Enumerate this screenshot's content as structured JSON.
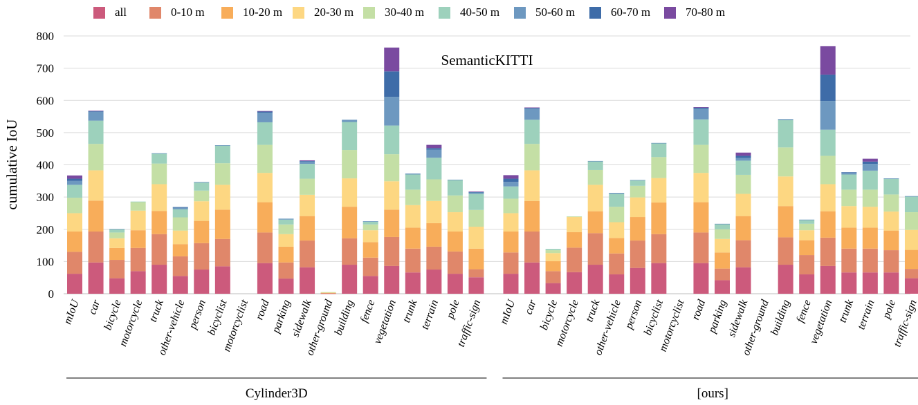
{
  "chart_data": {
    "type": "bar",
    "stacked": true,
    "title": "SemanticKITTI",
    "ylabel": "cumulative IoU",
    "ylim": [
      0,
      800
    ],
    "yticks": [
      0,
      100,
      200,
      300,
      400,
      500,
      600,
      700,
      800
    ],
    "grid": true,
    "legend_position": "top",
    "categories": [
      "mIoU",
      "car",
      "bicycle",
      "motorcycle",
      "truck",
      "other-vehicle",
      "person",
      "bicyclist",
      "motorcyclist",
      "road",
      "parking",
      "sidewalk",
      "other-ground",
      "building",
      "fence",
      "vegetation",
      "trunk",
      "terrain",
      "pole",
      "traffic-sign"
    ],
    "series_names": [
      "all",
      "0-10 m",
      "10-20 m",
      "20-30 m",
      "30-40 m",
      "40-50 m",
      "50-60 m",
      "60-70 m",
      "70-80 m"
    ],
    "series_colors": [
      "#cc5a7c",
      "#e0876a",
      "#f8ad5a",
      "#fdd782",
      "#c4dfa5",
      "#9dd1bc",
      "#6d98c0",
      "#3e6ca8",
      "#7a4aa0"
    ],
    "groups": [
      {
        "name": "Cylinder3D",
        "stacks": [
          [
            62,
            130,
            193,
            250,
            298,
            338,
            350,
            357,
            367
          ],
          [
            97,
            193,
            289,
            383,
            465,
            537,
            565,
            567,
            568
          ],
          [
            48,
            105,
            142,
            172,
            190,
            200,
            201,
            201,
            201
          ],
          [
            70,
            142,
            197,
            258,
            285,
            286,
            286,
            286,
            286
          ],
          [
            90,
            185,
            257,
            340,
            404,
            435,
            436,
            436,
            436
          ],
          [
            55,
            116,
            154,
            196,
            237,
            262,
            268,
            269,
            269
          ],
          [
            75,
            157,
            226,
            287,
            320,
            345,
            347,
            347,
            347
          ],
          [
            85,
            170,
            261,
            338,
            405,
            460,
            461,
            461,
            461
          ],
          [
            0,
            0,
            0,
            0,
            0,
            0,
            0,
            0,
            0
          ],
          [
            95,
            190,
            284,
            375,
            462,
            532,
            562,
            566,
            567
          ],
          [
            47,
            97,
            146,
            185,
            215,
            230,
            233,
            233,
            233
          ],
          [
            82,
            165,
            241,
            307,
            357,
            403,
            410,
            412,
            414
          ],
          [
            1,
            2,
            3,
            4,
            5,
            5,
            5,
            5,
            5
          ],
          [
            90,
            172,
            270,
            358,
            446,
            533,
            540,
            540,
            540
          ],
          [
            55,
            112,
            160,
            197,
            215,
            224,
            225,
            225,
            225
          ],
          [
            86,
            176,
            261,
            349,
            433,
            522,
            611,
            690,
            764
          ],
          [
            66,
            140,
            205,
            275,
            323,
            370,
            373,
            373,
            373
          ],
          [
            75,
            146,
            219,
            288,
            355,
            422,
            447,
            452,
            462
          ],
          [
            62,
            131,
            193,
            253,
            305,
            353,
            354,
            354,
            354
          ],
          [
            51,
            76,
            140,
            208,
            260,
            310,
            315,
            316,
            317
          ]
        ]
      },
      {
        "name": "[ours]",
        "stacks": [
          [
            62,
            128,
            193,
            250,
            295,
            333,
            347,
            357,
            368
          ],
          [
            97,
            193,
            288,
            383,
            465,
            540,
            576,
            577,
            578
          ],
          [
            33,
            70,
            101,
            126,
            135,
            139,
            139,
            139,
            139
          ],
          [
            67,
            143,
            191,
            238,
            240,
            240,
            240,
            240,
            240
          ],
          [
            90,
            188,
            256,
            338,
            384,
            411,
            412,
            412,
            412
          ],
          [
            60,
            125,
            173,
            222,
            270,
            310,
            313,
            313,
            313
          ],
          [
            80,
            165,
            238,
            299,
            335,
            352,
            353,
            353,
            353
          ],
          [
            95,
            185,
            283,
            359,
            424,
            467,
            468,
            468,
            468
          ],
          [
            0,
            0,
            0,
            0,
            0,
            0,
            0,
            0,
            0
          ],
          [
            95,
            190,
            284,
            375,
            462,
            541,
            574,
            578,
            579
          ],
          [
            42,
            78,
            128,
            170,
            200,
            216,
            217,
            217,
            217
          ],
          [
            82,
            166,
            241,
            310,
            369,
            413,
            421,
            428,
            438
          ],
          [
            0,
            0,
            0,
            0,
            0,
            0,
            0,
            0,
            0
          ],
          [
            90,
            175,
            272,
            364,
            454,
            539,
            542,
            542,
            542
          ],
          [
            60,
            120,
            166,
            197,
            217,
            229,
            230,
            230,
            230
          ],
          [
            86,
            174,
            256,
            340,
            428,
            509,
            598,
            680,
            768
          ],
          [
            66,
            140,
            205,
            272,
            323,
            370,
            376,
            377,
            377
          ],
          [
            66,
            140,
            205,
            270,
            323,
            382,
            403,
            410,
            419
          ],
          [
            66,
            135,
            196,
            255,
            308,
            357,
            358,
            358,
            358
          ],
          [
            48,
            77,
            136,
            198,
            253,
            302,
            303,
            303,
            303
          ]
        ]
      }
    ]
  }
}
